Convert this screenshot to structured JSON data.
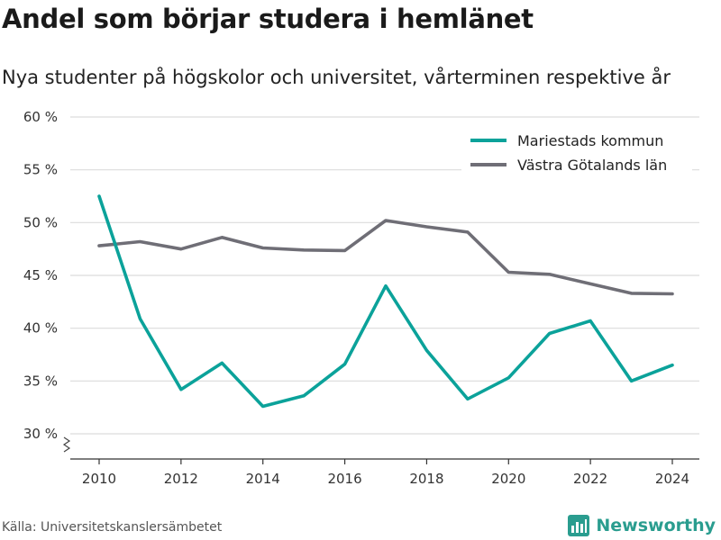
{
  "title": "Andel som börjar studera i hemlänet",
  "subtitle": "Nya studenter på högskolor och universitet, vårterminen respektive år",
  "source": "Källa: Universitetskanslersämbetet",
  "brand": {
    "name": "Newsworthy",
    "icon": "newsworthy-logo-icon",
    "color": "#2a9d8f"
  },
  "chart_data": {
    "type": "line",
    "x": [
      2010,
      2011,
      2012,
      2013,
      2014,
      2015,
      2016,
      2017,
      2018,
      2019,
      2020,
      2021,
      2022,
      2023,
      2024
    ],
    "x_ticks": [
      "2010",
      "2012",
      "2014",
      "2016",
      "2018",
      "2020",
      "2022",
      "2024"
    ],
    "y_ticks": [
      "30 %",
      "35 %",
      "40 %",
      "45 %",
      "50 %",
      "55 %",
      "60 %"
    ],
    "ylim": [
      30,
      60
    ],
    "y_axis_break": true,
    "grid": true,
    "legend_position": "top-right",
    "series": [
      {
        "name": "Mariestads kommun",
        "color": "#0ba29a",
        "values": [
          52.5,
          40.9,
          34.2,
          36.7,
          32.6,
          33.6,
          36.6,
          44.0,
          37.9,
          33.3,
          35.3,
          39.5,
          40.7,
          35.0,
          36.5
        ]
      },
      {
        "name": "Västra Götalands län",
        "color": "#6f6e76",
        "values": [
          47.8,
          48.2,
          47.5,
          48.6,
          47.6,
          47.4,
          47.35,
          50.2,
          49.6,
          49.1,
          45.3,
          45.1,
          44.2,
          43.3,
          43.25
        ]
      }
    ]
  }
}
